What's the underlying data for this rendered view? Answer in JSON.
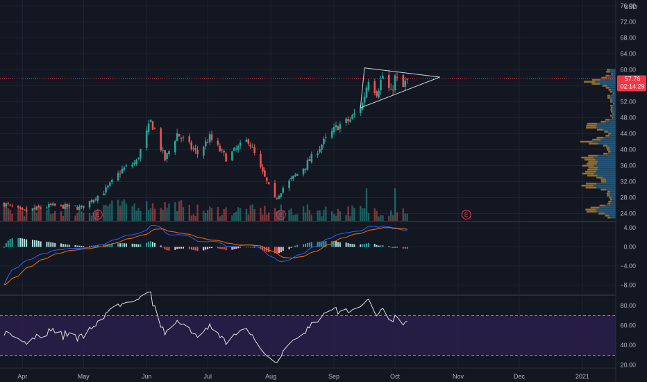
{
  "currency": "USD",
  "last_price_label": "57.76",
  "countdown_label": "02:14:29",
  "earnings_marker": "E",
  "colors": {
    "background": "#131722",
    "grid": "#1e2433",
    "axis_text": "#b2b5be",
    "up": "#26a69a",
    "down": "#ef5350",
    "macd_line": "#2962ff",
    "signal_line": "#ff6d00",
    "rsi_line": "#e0e0e0",
    "rsi_band": "#2a1f4a",
    "profile_blue": "#1f5f8b",
    "profile_gold": "#a5782a",
    "price_badge": "#f23645",
    "triangle": "#d1d4dc"
  },
  "chart_data": [
    {
      "type": "candlestick",
      "panel": "price",
      "x_labels": [
        "Apr",
        "May",
        "Jun",
        "Jul",
        "Aug",
        "Sep",
        "Oct",
        "Nov",
        "Dec",
        "2021"
      ],
      "y_ticks": [
        24,
        28,
        32,
        36,
        40,
        44,
        48,
        52,
        56,
        60,
        64,
        68,
        72,
        76
      ],
      "y_tick_labels": [
        "24.00",
        "28.00",
        "32.00",
        "36.00",
        "40.00",
        "44.00",
        "48.00",
        "52.00",
        "56.00",
        "60.00",
        "64.00",
        "68.00",
        "72.00",
        "76.00"
      ],
      "ylim": [
        22.2,
        77.5
      ],
      "last_close": 57.76,
      "earnings_dates": [
        "2020-05-08",
        "2020-08-06",
        "2020-11-05"
      ],
      "close_anchors": [
        [
          "2020-03-23",
          26.5
        ],
        [
          "2020-04-01",
          24.5
        ],
        [
          "2020-04-15",
          26.0
        ],
        [
          "2020-04-30",
          25.5
        ],
        [
          "2020-05-12",
          30.0
        ],
        [
          "2020-05-20",
          35.0
        ],
        [
          "2020-05-27",
          37.0
        ],
        [
          "2020-06-03",
          47.0
        ],
        [
          "2020-06-05",
          45.0
        ],
        [
          "2020-06-10",
          37.5
        ],
        [
          "2020-06-16",
          44.0
        ],
        [
          "2020-06-26",
          39.0
        ],
        [
          "2020-07-02",
          43.0
        ],
        [
          "2020-07-10",
          38.0
        ],
        [
          "2020-07-21",
          42.5
        ],
        [
          "2020-07-28",
          34.0
        ],
        [
          "2020-08-03",
          27.5
        ],
        [
          "2020-08-07",
          30.5
        ],
        [
          "2020-08-18",
          36.0
        ],
        [
          "2020-08-27",
          42.0
        ],
        [
          "2020-09-03",
          46.0
        ],
        [
          "2020-09-09",
          47.5
        ],
        [
          "2020-09-15",
          51.5
        ],
        [
          "2020-09-18",
          58.0
        ],
        [
          "2020-09-22",
          54.5
        ],
        [
          "2020-09-25",
          58.5
        ],
        [
          "2020-09-29",
          54.0
        ],
        [
          "2020-10-01",
          58.0
        ],
        [
          "2020-10-05",
          55.5
        ],
        [
          "2020-10-07",
          57.8
        ]
      ],
      "triangle_pattern": [
        [
          "2020-09-16",
          60.5
        ],
        [
          "2020-10-23",
          58.2
        ],
        [
          "2020-09-14",
          50.5
        ]
      ],
      "volume_profile_peaks": [
        57,
        46,
        42,
        38,
        36,
        34,
        31,
        25
      ]
    },
    {
      "type": "macd",
      "panel": "macd",
      "y_ticks": [
        4,
        0,
        -4,
        -8
      ],
      "y_tick_labels": [
        "4.00",
        "0.00",
        "−4.00",
        "−8.00"
      ],
      "ylim": [
        -10.0,
        5.2
      ],
      "series": [
        {
          "name": "MACD"
        },
        {
          "name": "Signal"
        },
        {
          "name": "Histogram"
        }
      ]
    },
    {
      "type": "line",
      "panel": "rsi",
      "y_ticks": [
        80,
        60,
        40,
        20
      ],
      "y_tick_labels": [
        "80.00",
        "60.00",
        "40.00",
        "20.00"
      ],
      "ylim": [
        17,
        90
      ],
      "bands": [
        30,
        70
      ]
    }
  ]
}
